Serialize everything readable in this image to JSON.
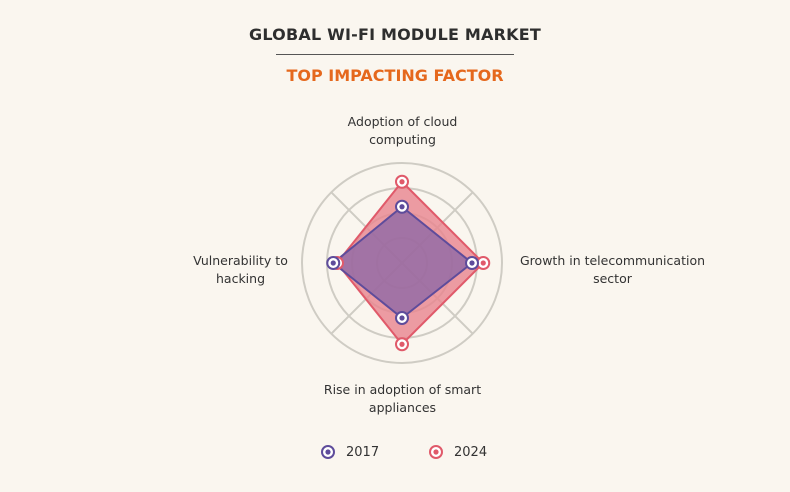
{
  "header": {
    "title": "GLOBAL WI-FI MODULE MARKET",
    "subtitle": "TOP IMPACTING FACTOR"
  },
  "chart_data": {
    "type": "radar",
    "title": "GLOBAL WI-FI MODULE MARKET",
    "subtitle": "TOP IMPACTING FACTOR",
    "axes": [
      "Adoption of cloud computing",
      "Growth in telecommunication sector",
      "Rise in adoption of smart appliances",
      "Vulnerability to hacking"
    ],
    "rings": 4,
    "range": [
      0,
      4
    ],
    "series": [
      {
        "name": "2024",
        "values": [
          3.25,
          3.25,
          3.25,
          2.6
        ],
        "color": "#e05a6a"
      },
      {
        "name": "2017",
        "values": [
          2.25,
          2.8,
          2.2,
          2.75
        ],
        "color": "#5e4c9b"
      }
    ],
    "legend_position": "bottom-center",
    "grid": true
  },
  "colors": {
    "grid": "#cfccc4",
    "fill_2024": "#e8858f",
    "fill_2017": "#8a66a6"
  }
}
